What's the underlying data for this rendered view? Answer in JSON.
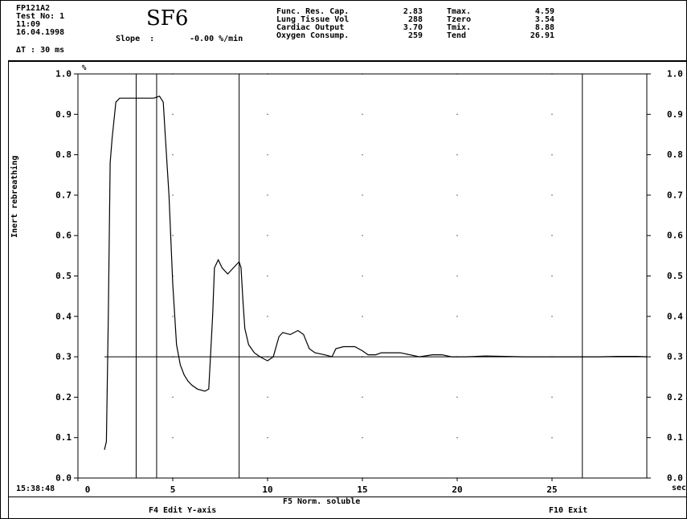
{
  "header": {
    "file_id": "FP121A2",
    "test_no": "Test No: 1",
    "time": "11:09",
    "date": "16.04.1998",
    "delta_t": "ΔT : 30 ms",
    "gas": "SF6",
    "slope_label": "Slope  :",
    "slope_value": "-0.00 %/min",
    "params": [
      {
        "label": "Func. Res. Cap.",
        "value": "2.83"
      },
      {
        "label": "Lung Tissue Vol",
        "value": "288"
      },
      {
        "label": "Cardiac Output",
        "value": "3.70"
      },
      {
        "label": "Oxygen Consump.",
        "value": "259"
      }
    ],
    "times": [
      {
        "label": "Tmax.",
        "value": "4.59"
      },
      {
        "label": "Tzero",
        "value": "3.54"
      },
      {
        "label": "Tmix.",
        "value": "8.88"
      },
      {
        "label": "Tend",
        "value": "26.91"
      }
    ]
  },
  "footer": {
    "clock": "15:38:48",
    "f5": "F5 Norm. soluble",
    "f4": "F4 Edit Y-axis",
    "f10": "F10 Exit"
  },
  "chart_data": {
    "type": "line",
    "title": "",
    "xlabel": "sec",
    "ylabel": "Inert rebreathing",
    "y_unit": "%",
    "xlim": [
      0,
      30
    ],
    "ylim": [
      0.0,
      1.0
    ],
    "x_ticks": [
      0,
      5,
      10,
      15,
      20,
      25
    ],
    "x_tick_labels": [
      "0",
      "5",
      "10",
      "15",
      "20",
      "25"
    ],
    "y_ticks": [
      0.0,
      0.1,
      0.2,
      0.3,
      0.4,
      0.5,
      0.6,
      0.7,
      0.8,
      0.9,
      1.0
    ],
    "y_tick_labels": [
      "0.0",
      "0.1",
      "0.2",
      "0.3",
      "0.4",
      "0.5",
      "0.6",
      "0.7",
      "0.8",
      "0.9",
      "1.0"
    ],
    "right_axis_tick_labels": [
      "0.0",
      "0.1",
      "0.2",
      "0.3",
      "0.4",
      "0.5",
      "0.6",
      "0.7",
      "0.8",
      "0.9",
      "1.0"
    ],
    "grid": "dotted",
    "reference_line_y": 0.3,
    "markers_x": [
      3.07,
      4.15,
      8.5,
      26.6
    ],
    "series": [
      {
        "x": [
          1.4,
          1.5,
          1.6,
          1.7,
          1.8,
          2.0,
          2.2,
          2.5,
          3.0,
          3.5,
          4.0,
          4.3,
          4.5,
          4.6,
          4.8,
          5.0,
          5.2,
          5.4,
          5.6,
          5.8,
          6.0,
          6.3,
          6.7,
          6.9,
          7.1,
          7.2,
          7.4,
          7.6,
          7.9,
          8.2,
          8.5,
          8.6,
          8.7,
          8.8,
          9.0,
          9.3,
          9.6,
          10.0,
          10.3,
          10.6,
          10.8,
          11.2,
          11.6,
          11.9,
          12.2,
          12.5,
          13.0,
          13.4,
          13.6,
          14.0,
          14.6,
          15.0,
          15.3,
          15.7,
          16.0,
          16.5,
          17.0,
          17.5,
          18.0,
          18.7,
          19.2,
          19.7,
          20.5,
          21.5,
          22.5,
          23.5,
          24.5,
          25.5,
          26.5,
          27.5,
          28.5,
          29.5,
          30.0
        ],
        "y": [
          0.07,
          0.09,
          0.4,
          0.78,
          0.84,
          0.93,
          0.94,
          0.94,
          0.94,
          0.94,
          0.94,
          0.945,
          0.93,
          0.85,
          0.7,
          0.48,
          0.33,
          0.28,
          0.255,
          0.24,
          0.23,
          0.22,
          0.215,
          0.22,
          0.4,
          0.52,
          0.54,
          0.52,
          0.505,
          0.52,
          0.535,
          0.52,
          0.44,
          0.37,
          0.33,
          0.31,
          0.3,
          0.29,
          0.3,
          0.35,
          0.36,
          0.355,
          0.365,
          0.355,
          0.32,
          0.31,
          0.305,
          0.3,
          0.32,
          0.325,
          0.325,
          0.315,
          0.305,
          0.305,
          0.31,
          0.31,
          0.31,
          0.305,
          0.3,
          0.305,
          0.305,
          0.3,
          0.3,
          0.302,
          0.301,
          0.3,
          0.3,
          0.3,
          0.3,
          0.3,
          0.301,
          0.301,
          0.3
        ]
      }
    ]
  }
}
